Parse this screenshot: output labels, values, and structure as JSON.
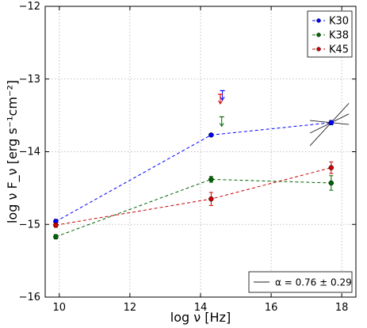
{
  "chart_data": {
    "type": "scatter",
    "xlabel": "log ν [Hz]",
    "ylabel": "log ν F_ν [erg s⁻¹cm⁻²]",
    "xlim": [
      9.6,
      18.4
    ],
    "ylim": [
      -16,
      -12
    ],
    "x_ticks": [
      10,
      12,
      14,
      16,
      18
    ],
    "y_ticks": [
      -16,
      -15,
      -14,
      -13,
      -12
    ],
    "grid": true,
    "legend_position": "top-right",
    "series": [
      {
        "name": "K30",
        "color": "#0000ff",
        "points": [
          {
            "x": 9.9,
            "y": -14.96,
            "err": 0.03
          },
          {
            "x": 14.3,
            "y": -13.77,
            "err": 0.02
          },
          {
            "x": 17.7,
            "y": -13.6,
            "err": 0.03
          }
        ],
        "upper_limits": [
          {
            "x": 14.62,
            "y": -13.16
          }
        ]
      },
      {
        "name": "K38",
        "color": "#006400",
        "points": [
          {
            "x": 9.9,
            "y": -15.17,
            "err": 0.03
          },
          {
            "x": 14.3,
            "y": -14.38,
            "err": 0.04
          },
          {
            "x": 17.7,
            "y": -14.43,
            "err": 0.1
          }
        ],
        "upper_limits": [
          {
            "x": 14.6,
            "y": -13.52
          }
        ]
      },
      {
        "name": "K45",
        "color": "#cc0000",
        "points": [
          {
            "x": 9.9,
            "y": -15.01,
            "err": 0.03
          },
          {
            "x": 14.3,
            "y": -14.65,
            "err": 0.09
          },
          {
            "x": 17.7,
            "y": -14.22,
            "err": 0.08
          }
        ],
        "upper_limits": [
          {
            "x": 14.56,
            "y": -13.21
          }
        ]
      }
    ],
    "powerlaw_fit": {
      "label": "α = 0.76 ± 0.29",
      "pivot": [
        17.7,
        -13.6
      ],
      "x_range": [
        17.1,
        18.2
      ],
      "slopes": [
        0.24,
        -0.05,
        0.53
      ]
    }
  }
}
